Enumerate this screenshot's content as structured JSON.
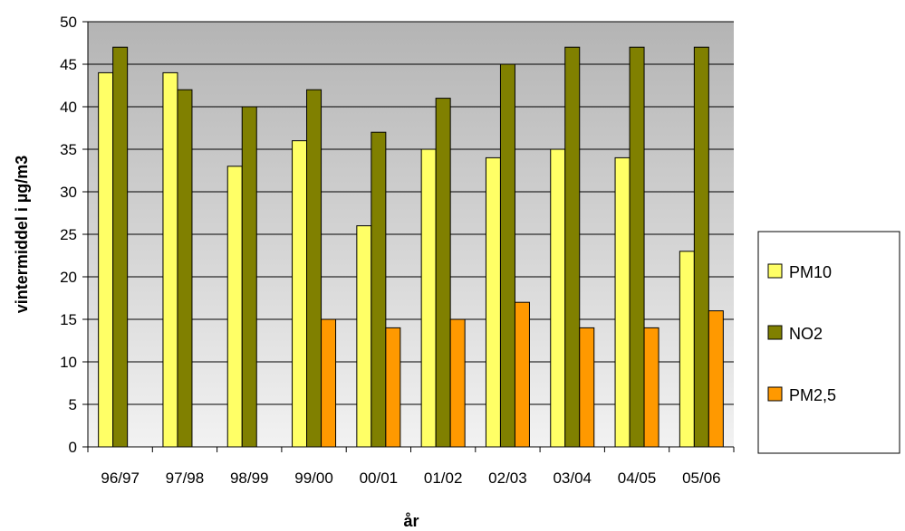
{
  "chart_data": {
    "type": "bar",
    "title": "",
    "xlabel": "år",
    "ylabel": "vintermiddel i µg/m3",
    "ylim": [
      0,
      50
    ],
    "ytick_step": 5,
    "grid": true,
    "legend_position": "right",
    "categories": [
      "96/97",
      "97/98",
      "98/99",
      "99/00",
      "00/01",
      "01/02",
      "02/03",
      "03/04",
      "04/05",
      "05/06"
    ],
    "series": [
      {
        "name": "PM10",
        "color": "#ffff66",
        "values": [
          44,
          44,
          33,
          36,
          26,
          35,
          34,
          35,
          34,
          23
        ]
      },
      {
        "name": "NO2",
        "color": "#808000",
        "values": [
          47,
          42,
          40,
          42,
          37,
          41,
          45,
          47,
          47,
          47
        ]
      },
      {
        "name": "PM2,5",
        "color": "#ff9900",
        "values": [
          null,
          null,
          null,
          15,
          14,
          15,
          17,
          14,
          14,
          16
        ]
      }
    ]
  }
}
